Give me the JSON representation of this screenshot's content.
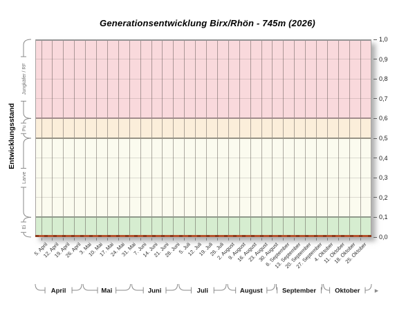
{
  "chart_data": {
    "type": "line",
    "title": "Generationsentwicklung Birx/Rhön - 745m (2026)",
    "ylabel": "Entwicklungsstand",
    "xlabel": "",
    "ylim": [
      0,
      1
    ],
    "grid": true,
    "legend": false,
    "x_tick_labels": [
      "5. April",
      "12. April",
      "19. April",
      "26. April",
      "3. Mai",
      "10. Mai",
      "17. Mai",
      "24. Mai",
      "31. Mai",
      "7. Juni",
      "14. Juni",
      "21. Juni",
      "28. Juni",
      "5. Juli",
      "12. Juli",
      "19. Juli",
      "26. Juli",
      "2. August",
      "9. August",
      "16. August",
      "23. August",
      "30. August",
      "6. September",
      "13. September",
      "20. September",
      "27. September",
      "4. Oktober",
      "11. Oktober",
      "18. Oktober",
      "25. Oktober"
    ],
    "series": [
      {
        "name": "Entwicklungsstand 2026",
        "color": "#b5532e",
        "values": [
          0,
          0,
          0,
          0,
          0,
          0,
          0,
          0,
          0,
          0,
          0,
          0,
          0,
          0,
          0,
          0,
          0,
          0,
          0,
          0,
          0,
          0,
          0,
          0,
          0,
          0,
          0,
          0,
          0,
          0
        ]
      }
    ],
    "zones": [
      {
        "label": "Jungkäfer / RF",
        "from": 0.6,
        "to": 1.0,
        "color": "#f9d9dc"
      },
      {
        "label": "Pu",
        "from": 0.5,
        "to": 0.6,
        "color": "#fbeeda"
      },
      {
        "label": "Larve",
        "from": 0.1,
        "to": 0.5,
        "color": "#fbfbef"
      },
      {
        "label": "Ei",
        "from": 0.0,
        "to": 0.1,
        "color": "#d6edd0"
      }
    ],
    "y_ticks": [
      {
        "v": 1.0,
        "label": "1,0"
      },
      {
        "v": 0.9,
        "label": "0,9"
      },
      {
        "v": 0.8,
        "label": "0,8"
      },
      {
        "v": 0.7,
        "label": "0,7"
      },
      {
        "v": 0.6,
        "label": "0,6"
      },
      {
        "v": 0.5,
        "label": "0,5"
      },
      {
        "v": 0.4,
        "label": "0,4"
      },
      {
        "v": 0.3,
        "label": "0,3"
      },
      {
        "v": 0.2,
        "label": "0,2"
      },
      {
        "v": 0.1,
        "label": "0,1"
      },
      {
        "v": 0.0,
        "label": "0,0"
      }
    ],
    "minor_gridlines": [
      0.9,
      0.8,
      0.7,
      0.4,
      0.3,
      0.2
    ],
    "boundaries": [
      {
        "v": 1.0,
        "color": "#949494"
      },
      {
        "v": 0.6,
        "color": "#a18c8c"
      },
      {
        "v": 0.5,
        "color": "#969185"
      },
      {
        "v": 0.1,
        "color": "#8f998b"
      }
    ],
    "months": [
      {
        "label": "April",
        "start_day": 0,
        "end_day": 30
      },
      {
        "label": "Mai",
        "start_day": 30,
        "end_day": 61
      },
      {
        "label": "Juni",
        "start_day": 61,
        "end_day": 91
      },
      {
        "label": "Juli",
        "start_day": 91,
        "end_day": 122
      },
      {
        "label": "August",
        "start_day": 122,
        "end_day": 153
      },
      {
        "label": "September",
        "start_day": 153,
        "end_day": 183
      },
      {
        "label": "Oktober",
        "start_day": 183,
        "end_day": 214
      }
    ],
    "first_day_offset": 4,
    "day_step": 7,
    "total_days": 214,
    "icons": {
      "continue_arrow": "►"
    }
  }
}
